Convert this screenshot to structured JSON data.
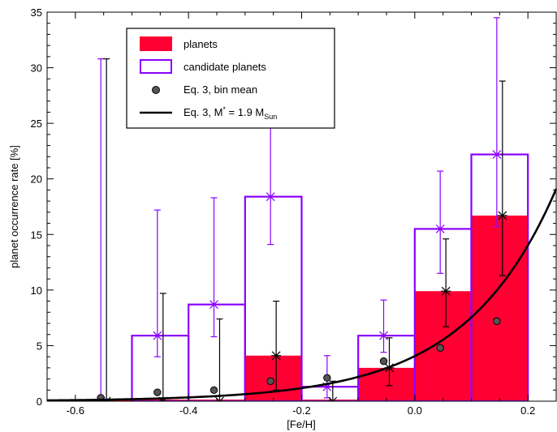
{
  "chart_data": {
    "type": "bar",
    "title": "",
    "xlabel": "[Fe/H]",
    "ylabel": "planet occurrence rate [%]",
    "xlim": [
      -0.65,
      0.25
    ],
    "ylim": [
      0,
      35
    ],
    "xticks": [
      -0.6,
      -0.4,
      -0.2,
      0.0,
      0.2
    ],
    "xtick_labels": [
      "-0.6",
      "-0.4",
      "-0.2",
      "0.0",
      "0.2"
    ],
    "yticks": [
      0,
      5,
      10,
      15,
      20,
      25,
      30,
      35
    ],
    "ytick_labels": [
      "0",
      "5",
      "10",
      "15",
      "20",
      "25",
      "30",
      "35"
    ],
    "bins": [
      [
        -0.6,
        -0.5
      ],
      [
        -0.5,
        -0.4
      ],
      [
        -0.4,
        -0.3
      ],
      [
        -0.3,
        -0.2
      ],
      [
        -0.2,
        -0.1
      ],
      [
        -0.1,
        0.0
      ],
      [
        0.0,
        0.1
      ],
      [
        0.1,
        0.2
      ]
    ],
    "colors": {
      "planets": "#ff0033",
      "candidates": "#8b00ff",
      "model": "#000000"
    },
    "series": [
      {
        "name": "planets",
        "kind": "histogram-filled",
        "values": [
          0,
          0,
          0,
          4.1,
          0,
          3.0,
          9.9,
          16.7
        ]
      },
      {
        "name": "candidate planets",
        "kind": "histogram-outline",
        "values": [
          0,
          5.9,
          8.7,
          18.4,
          1.3,
          5.9,
          15.5,
          22.2
        ]
      },
      {
        "name": "Eq. 3, bin mean",
        "kind": "points",
        "x": [
          -0.555,
          -0.455,
          -0.355,
          -0.255,
          -0.155,
          -0.055,
          0.045,
          0.145
        ],
        "y": [
          0.3,
          0.8,
          1.0,
          1.8,
          2.1,
          3.6,
          4.8,
          7.2
        ]
      },
      {
        "name": "Eq. 3, M* = 1.9 MSun",
        "kind": "curve",
        "a": 4.06,
        "b": 2.69
      }
    ],
    "candidate_errorbars": [
      {
        "x": -0.555,
        "y": 0.0,
        "lo": 0.0,
        "hi": 30.8
      },
      {
        "x": -0.455,
        "y": 5.9,
        "lo": 4.0,
        "hi": 17.2
      },
      {
        "x": -0.355,
        "y": 8.7,
        "lo": 5.8,
        "hi": 18.3
      },
      {
        "x": -0.255,
        "y": 18.4,
        "lo": 14.1,
        "hi": 25.0
      },
      {
        "x": -0.155,
        "y": 1.3,
        "lo": 0.3,
        "hi": 4.1
      },
      {
        "x": -0.055,
        "y": 5.9,
        "lo": 4.4,
        "hi": 9.1
      },
      {
        "x": 0.045,
        "y": 15.5,
        "lo": 11.5,
        "hi": 20.7
      },
      {
        "x": 0.145,
        "y": 22.2,
        "lo": 15.7,
        "hi": 34.5
      }
    ],
    "planet_errorbars": [
      {
        "x": -0.545,
        "y": 0.0,
        "lo": 0.0,
        "hi": 30.8
      },
      {
        "x": -0.445,
        "y": 0.0,
        "lo": 0.0,
        "hi": 9.7
      },
      {
        "x": -0.345,
        "y": 0.0,
        "lo": 0.0,
        "hi": 7.4
      },
      {
        "x": -0.245,
        "y": 4.1,
        "lo": 1.0,
        "hi": 9.0
      },
      {
        "x": -0.145,
        "y": 0.0,
        "lo": 0.0,
        "hi": 1.8
      },
      {
        "x": -0.045,
        "y": 3.0,
        "lo": 1.4,
        "hi": 5.7
      },
      {
        "x": 0.055,
        "y": 9.9,
        "lo": 6.7,
        "hi": 14.6
      },
      {
        "x": 0.155,
        "y": 16.7,
        "lo": 11.3,
        "hi": 28.8
      }
    ],
    "legend": {
      "placement": "top-left",
      "items": [
        {
          "label": "planets"
        },
        {
          "label": "candidate planets"
        },
        {
          "label": "Eq. 3, bin mean"
        },
        {
          "label_main": "Eq. 3, M",
          "label_star": "*",
          "label_eq": " = 1.9 M",
          "label_sub": "Sun"
        }
      ]
    }
  }
}
